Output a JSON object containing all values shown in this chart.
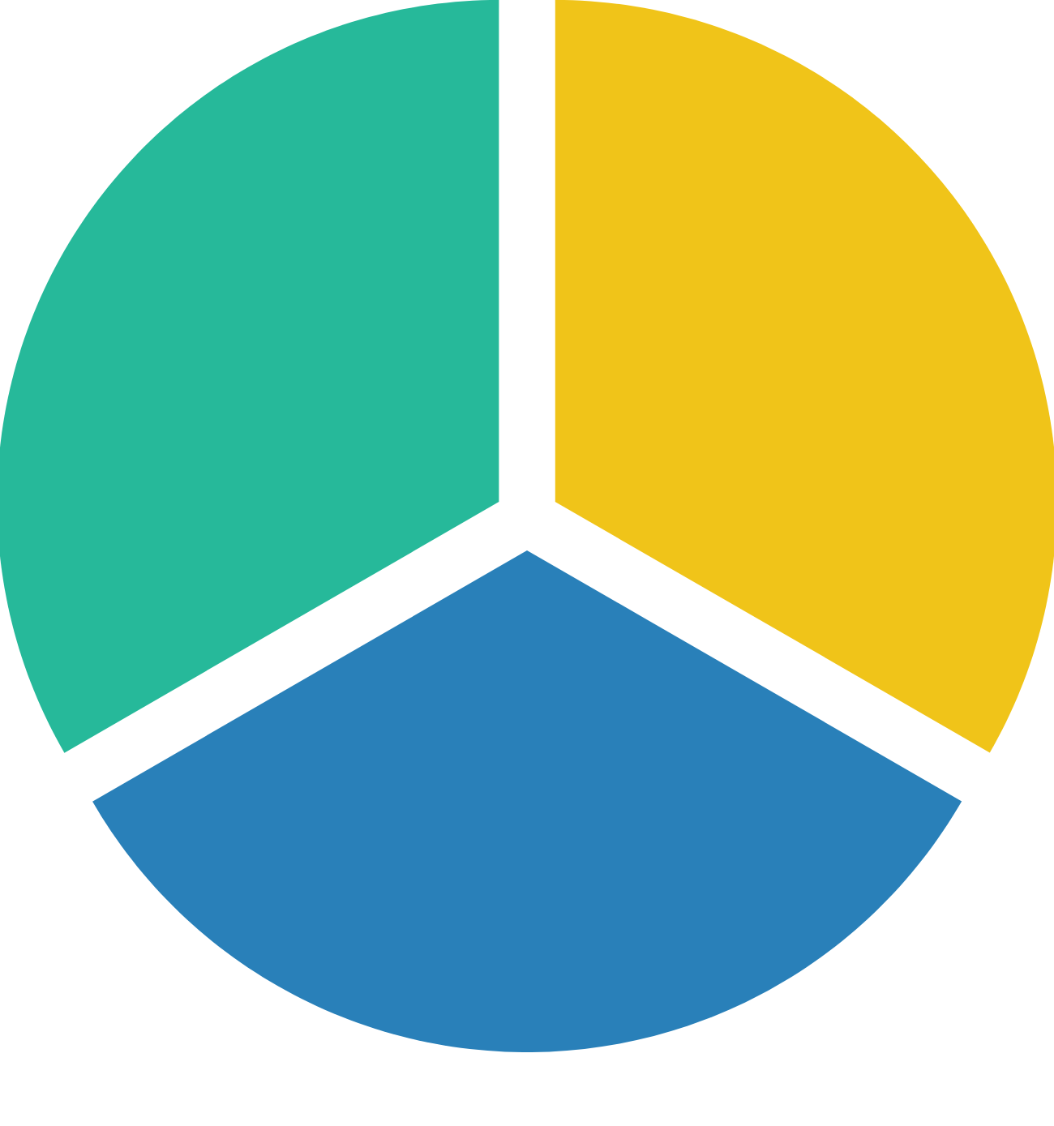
{
  "chart_data": {
    "type": "pie",
    "categories": [
      null,
      null,
      null
    ],
    "values": [
      33.33,
      33.33,
      33.34
    ],
    "colors": [
      "#f0c419",
      "#2980b9",
      "#26b99a"
    ]
  }
}
